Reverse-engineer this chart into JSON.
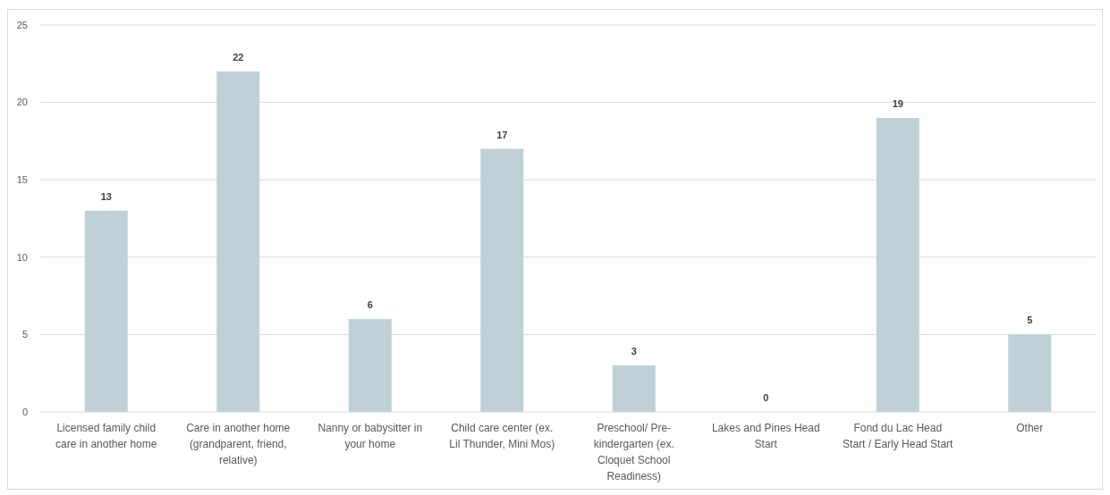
{
  "chart_data": {
    "type": "bar",
    "categories": [
      "Licensed family child care in another home",
      "Care in another home (grandparent, friend, relative)",
      "Nanny or babysitter in your home",
      "Child care center (ex. Lil Thunder, Mini Mos)",
      "Preschool/ Pre-kindergarten (ex. Cloquet School Readiness)",
      "Lakes and Pines Head Start",
      "Fond du Lac Head Start / Early Head Start",
      "Other"
    ],
    "values": [
      13,
      22,
      6,
      17,
      3,
      0,
      19,
      5
    ],
    "color": "#bfd1d6",
    "ylim": [
      0,
      25
    ],
    "yticks": [
      0,
      5,
      10,
      15,
      20,
      25
    ],
    "grid": "y",
    "data_labels": true
  }
}
